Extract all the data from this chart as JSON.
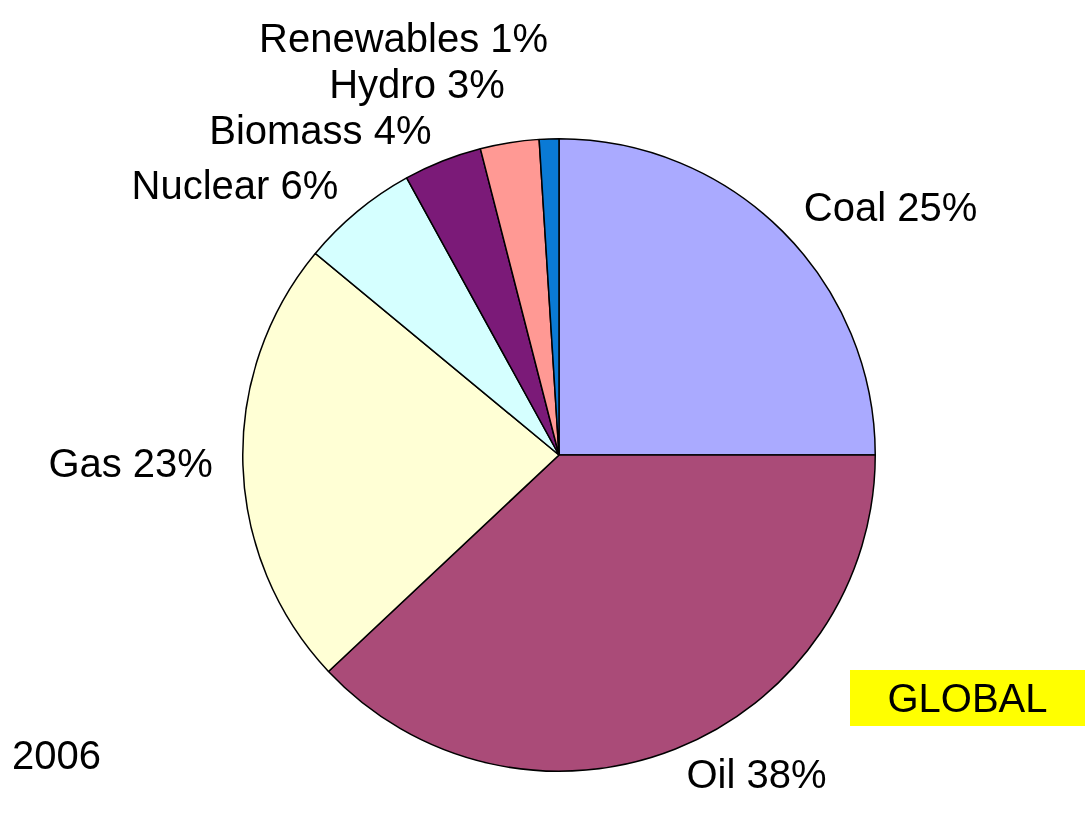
{
  "chart_data": {
    "type": "pie",
    "categories": [
      "Coal",
      "Oil",
      "Gas",
      "Nuclear",
      "Biomass",
      "Hydro",
      "Renewables"
    ],
    "values": [
      25,
      38,
      23,
      6,
      4,
      3,
      1
    ],
    "value_labels": [
      "25%",
      "38%",
      "23%",
      "6%",
      "4%",
      "3%",
      "1%"
    ],
    "colors": [
      "#aaaaff",
      "#aa4b78",
      "#ffffd5",
      "#d5ffff",
      "#7b1a78",
      "#ff9994",
      "#0a7ad5"
    ],
    "legend": false,
    "annotations": [
      "GLOBAL",
      "2006"
    ]
  }
}
